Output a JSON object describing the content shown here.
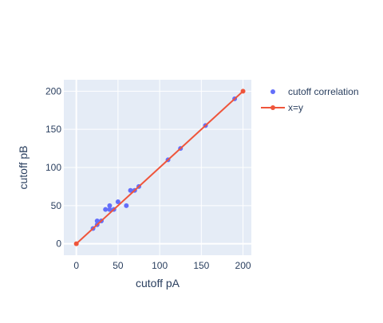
{
  "chart_data": {
    "type": "scatter",
    "title": "",
    "xlabel": "cutoff pA",
    "ylabel": "cutoff pB",
    "xlim": [
      -15,
      210
    ],
    "ylim": [
      -15,
      215
    ],
    "xticks": [
      0,
      50,
      100,
      150,
      200
    ],
    "yticks": [
      0,
      50,
      100,
      150,
      200
    ],
    "grid": true,
    "legend_position": "top-right",
    "background_color": "#e5ecf6",
    "series": [
      {
        "name": "cutoff correlation",
        "mode": "markers",
        "color": "#636efa",
        "x": [
          20,
          25,
          25,
          30,
          35,
          40,
          40,
          45,
          50,
          60,
          65,
          70,
          75,
          110,
          125,
          155,
          190
        ],
        "y": [
          20,
          25,
          30,
          30,
          45,
          45,
          50,
          45,
          55,
          50,
          70,
          70,
          75,
          110,
          125,
          155,
          190
        ]
      },
      {
        "name": "x=y",
        "mode": "lines+markers",
        "color": "#ef553b",
        "x": [
          0,
          200
        ],
        "y": [
          0,
          200
        ]
      }
    ]
  }
}
